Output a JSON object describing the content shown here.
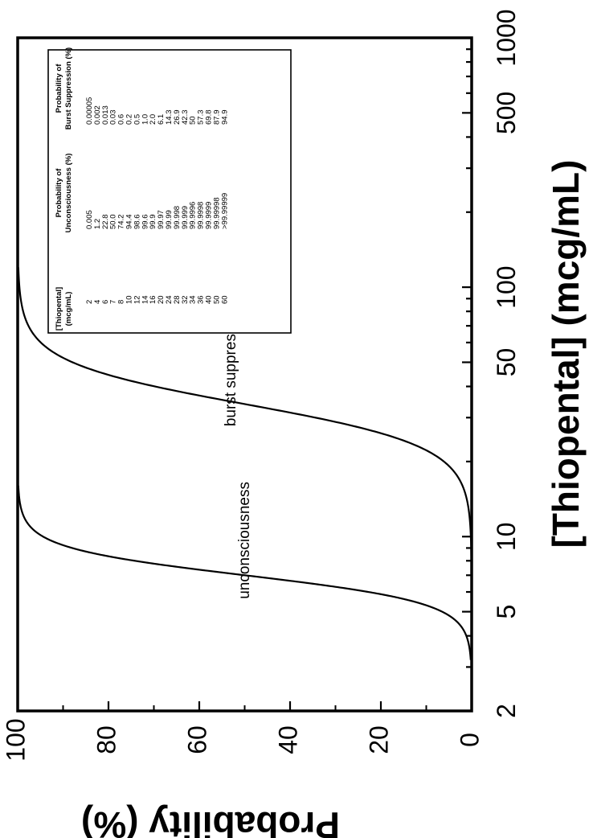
{
  "chart_data": {
    "type": "line",
    "xlabel": "[Thiopental]  (mcg/mL)",
    "ylabel": "Probability  (%)",
    "x_scale": "log",
    "xlim": [
      2,
      1000
    ],
    "ylim": [
      0,
      100
    ],
    "x_ticks": [
      "2",
      "5",
      "10",
      "50",
      "100",
      "500",
      "1000"
    ],
    "y_ticks": [
      "0",
      "20",
      "40",
      "60",
      "80",
      "100"
    ],
    "series": [
      {
        "name": "unconsciousness",
        "x": [
          2,
          4,
          6,
          7,
          8,
          10,
          12,
          14,
          16,
          20,
          24,
          28,
          32,
          34,
          36,
          40,
          50,
          60
        ],
        "values": [
          0.005,
          1.2,
          22.8,
          50.0,
          74.2,
          94.4,
          98.6,
          99.6,
          99.9,
          99.97,
          99.99,
          99.998,
          99.999,
          99.9996,
          99.9998,
          99.9999,
          99.99998,
          99.99999
        ]
      },
      {
        "name": "burst suppression",
        "x": [
          2,
          4,
          6,
          7,
          8,
          10,
          12,
          14,
          16,
          20,
          24,
          28,
          32,
          34,
          36,
          40,
          50,
          60
        ],
        "values": [
          5e-05,
          0.002,
          0.013,
          0.03,
          0.6,
          0.2,
          0.5,
          1.0,
          2.0,
          6.1,
          14.3,
          26.9,
          42.3,
          50,
          57.3,
          69.8,
          87.9,
          94.9
        ]
      }
    ],
    "table": {
      "headers": [
        [
          "[Thiopental]",
          "(mcg/mL)"
        ],
        [
          "Probability of",
          "Unconsciousness (%)"
        ],
        [
          "Probability of",
          "Burst Suppression (%)"
        ]
      ],
      "rows": [
        [
          "2",
          "0.005",
          "0.00005"
        ],
        [
          "4",
          "1.2",
          "0.002"
        ],
        [
          "6",
          "22.8",
          "0.013"
        ],
        [
          "7",
          "50.0",
          "0.03"
        ],
        [
          "8",
          "74.2",
          "0.6"
        ],
        [
          "10",
          "94.4",
          "0.2"
        ],
        [
          "12",
          "98.6",
          "0.5"
        ],
        [
          "14",
          "99.6",
          "1.0"
        ],
        [
          "16",
          "99.9",
          "2.0"
        ],
        [
          "20",
          "99.97",
          "6.1"
        ],
        [
          "24",
          "99.99",
          "14.3"
        ],
        [
          "28",
          "99.998",
          "26.9"
        ],
        [
          "32",
          "99.999",
          "42.3"
        ],
        [
          "34",
          "99.9996",
          "50"
        ],
        [
          "36",
          "99.9998",
          "57.3"
        ],
        [
          "40",
          "99.9999",
          "69.8"
        ],
        [
          "50",
          "99.99998",
          "87.9"
        ],
        [
          "60",
          ">99.99999",
          "94.9"
        ]
      ]
    },
    "grid": false,
    "legend": "none",
    "orientation": "rotated 90 degrees clockwise",
    "colors": {
      "line": "#000000",
      "background": "#ffffff"
    }
  }
}
